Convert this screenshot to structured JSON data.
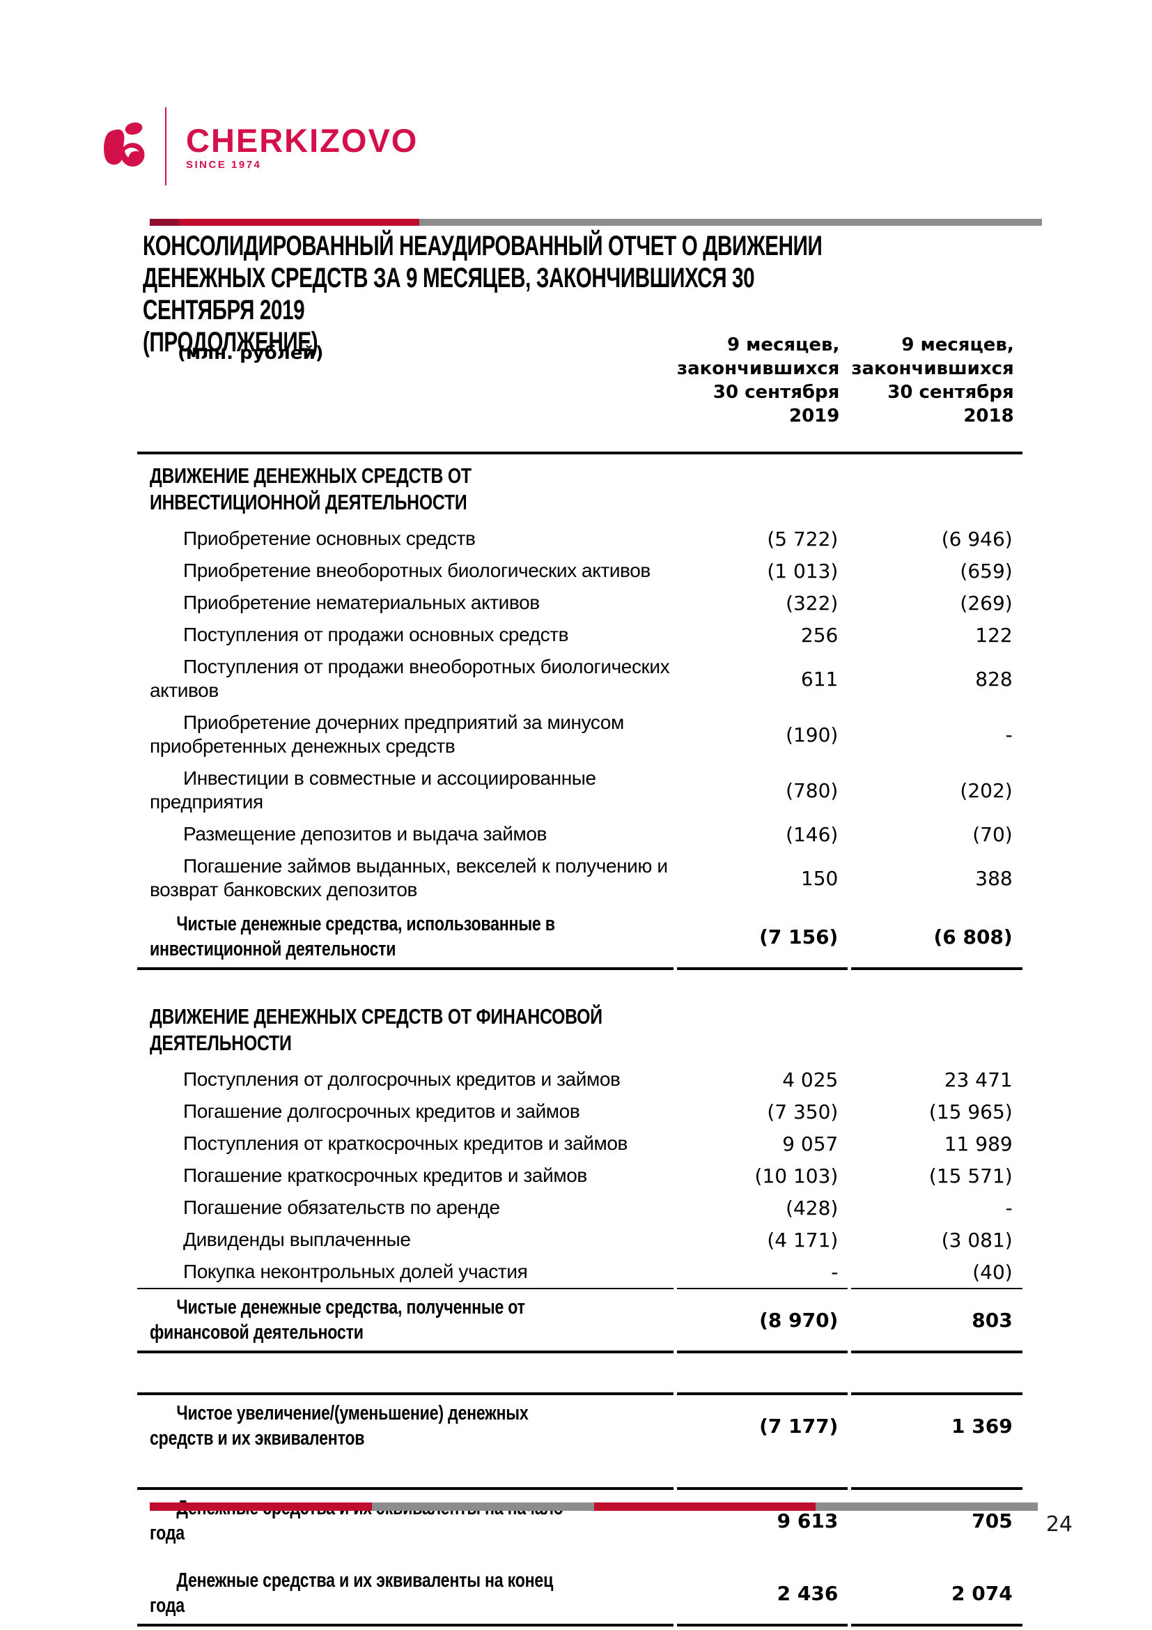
{
  "logo": {
    "brand": "CHERKIZOVO",
    "since": "SINCE 1974"
  },
  "colors": {
    "brand_red": "#D4104A",
    "bar_maroon": "#8F0F2E",
    "bar_crimson": "#C00C2D",
    "bar_gray": "#8C8C8C"
  },
  "title": "КОНСОЛИДИРОВАННЫЙ НЕАУДИРОВАННЫЙ ОТЧЕТ О ДВИЖЕНИИ\nДЕНЕЖНЫХ СРЕДСТВ ЗА 9 МЕСЯЦЕВ, ЗАКОНЧИВШИХСЯ 30 СЕНТЯБРЯ 2019\n(ПРОДОЛЖЕНИЕ)",
  "table": {
    "unit_label": "(млн. рублей)",
    "col1_header": "9 месяцев,\nзакончившихся\n30 сентября\n2019",
    "col2_header": "9 месяцев,\nзакончившихся\n30 сентября\n2018",
    "rows": [
      {
        "type": "section",
        "rule_top": "thick",
        "label": "ДВИЖЕНИЕ ДЕНЕЖНЫХ СРЕДСТВ ОТ\nИНВЕСТИЦИОННОЙ ДЕЯТЕЛЬНОСТИ"
      },
      {
        "type": "item",
        "label": "Приобретение основных средств",
        "v2019": "(5 722)",
        "v2018": "(6 946)"
      },
      {
        "type": "item",
        "label": "Приобретение внеоборотных биологических активов",
        "v2019": "(1 013)",
        "v2018": "(659)"
      },
      {
        "type": "item",
        "label": "Приобретение нематериальных активов",
        "v2019": "(322)",
        "v2018": "(269)"
      },
      {
        "type": "item",
        "label": "Поступления от продажи основных средств",
        "v2019": "256",
        "v2018": "122"
      },
      {
        "type": "item",
        "label": "Поступления от продажи внеоборотных биологических\nактивов",
        "v2019": "611",
        "v2018": "828"
      },
      {
        "type": "item",
        "label": "Приобретение дочерних предприятий за минусом\nприобретенных денежных средств",
        "v2019": "(190)",
        "v2018": "-"
      },
      {
        "type": "item",
        "label": "Инвестиции в совместные и ассоциированные\nпредприятия",
        "v2019": "(780)",
        "v2018": "(202)"
      },
      {
        "type": "item",
        "label": "Размещение депозитов и выдача займов",
        "v2019": "(146)",
        "v2018": "(70)"
      },
      {
        "type": "item",
        "label": "Погашение займов выданных, векселей к получению и\nвозврат банковских депозитов",
        "v2019": "150",
        "v2018": "388"
      },
      {
        "type": "total",
        "rule_bottom": "thick",
        "label": "Чистые денежные средства, использованные в\nинвестиционной деятельности",
        "v2019": "(7 156)",
        "v2018": "(6 808)"
      },
      {
        "type": "gap",
        "size": "sm"
      },
      {
        "type": "section",
        "label": "ДВИЖЕНИЕ ДЕНЕЖНЫХ СРЕДСТВ ОТ ФИНАНСОВОЙ\nДЕЯТЕЛЬНОСТИ"
      },
      {
        "type": "item",
        "label": "Поступления от долгосрочных кредитов и займов",
        "v2019": "4 025",
        "v2018": "23 471"
      },
      {
        "type": "item",
        "label": "Погашение долгосрочных кредитов и займов",
        "v2019": "(7 350)",
        "v2018": "(15 965)"
      },
      {
        "type": "item",
        "label": "Поступления от краткосрочных кредитов и займов",
        "v2019": "9 057",
        "v2018": "11 989"
      },
      {
        "type": "item",
        "label": "Погашение краткосрочных кредитов и займов",
        "v2019": "(10 103)",
        "v2018": "(15 571)"
      },
      {
        "type": "item",
        "label": "Погашение обязательств по аренде",
        "v2019": "(428)",
        "v2018": "-"
      },
      {
        "type": "item",
        "label": "Дивиденды выплаченные",
        "v2019": "(4 171)",
        "v2018": "(3 081)"
      },
      {
        "type": "item",
        "label": "Покупка неконтрольных долей участия",
        "v2019": "-",
        "v2018": "(40)"
      },
      {
        "type": "total",
        "rule_top": "thin",
        "rule_bottom": "thick",
        "label": "Чистые денежные средства, полученные от\nфинансовой деятельности",
        "v2019": "(8 970)",
        "v2018": "803"
      },
      {
        "type": "gap",
        "size": "lg"
      },
      {
        "type": "total",
        "rule_top": "thick",
        "label": "Чистое увеличение/(уменьшение) денежных\nсредств и их эквивалентов",
        "v2019": "(7 177)",
        "v2018": "1 369"
      },
      {
        "type": "gap",
        "size": "md"
      },
      {
        "type": "total",
        "rule_top": "thick",
        "label": "Денежные средства и их эквиваленты на начало\nгода",
        "v2019": "9 613",
        "v2018": "705"
      },
      {
        "type": "gap",
        "size": "xs"
      },
      {
        "type": "total",
        "rule_bottom": "thick",
        "label": "Денежные средства и их эквиваленты на конец года",
        "v2019": "2 436",
        "v2018": "2 074"
      }
    ]
  },
  "footer": {
    "page_number": "24"
  }
}
